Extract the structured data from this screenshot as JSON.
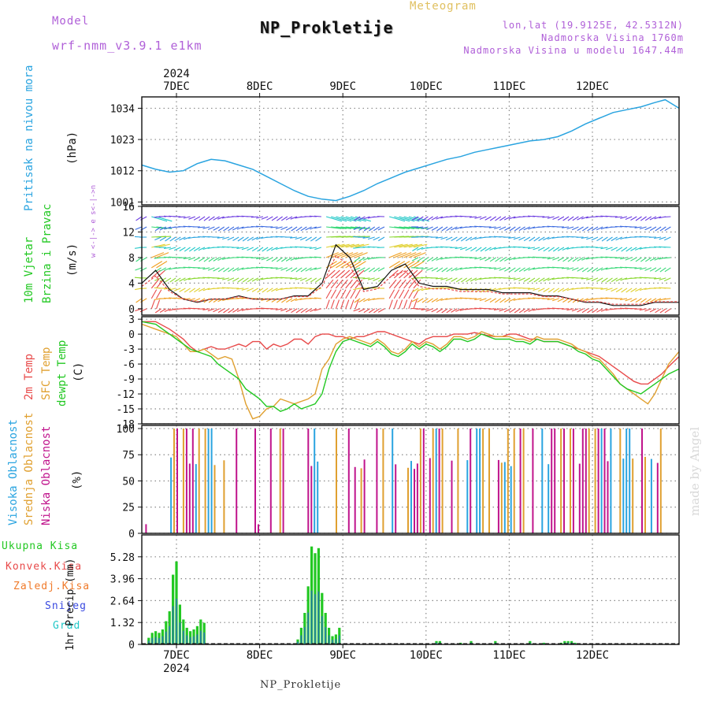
{
  "header": {
    "model_label": "Model",
    "model_name": "wrf-nmm_v3.9.1 e1km",
    "meteogram_label": "Meteogram",
    "station_title": "NP_Prokletije",
    "lonlat": "lon,lat (19.9125E, 42.5312N)",
    "elevation": "Nadmorska Visina 1760m",
    "model_elevation": "Nadmorska Visina u modelu 1647.44m",
    "year_top": "2024",
    "year_bottom": "2024",
    "footer_station": "NP_Prokletije",
    "credit": "made by Angel"
  },
  "colors": {
    "pressure": "#2aa4e0",
    "temp2m": "#e84a4a",
    "sfc_temp": "#e0a030",
    "dewpoint": "#22c822",
    "high_cloud": "#2aa4e0",
    "mid_cloud": "#e0a030",
    "low_cloud": "#c0148c",
    "total_precip": "#22c822",
    "convective": "#e84a4a",
    "freezing": "#f07a2a",
    "snow": "#3a4ae0",
    "hail": "#22c8c8",
    "header_purple": "#b060d8",
    "header_gold": "#e0c060",
    "grid": "#888888"
  },
  "x_axis": {
    "days": [
      "7DEC",
      "8DEC",
      "9DEC",
      "10DEC",
      "11DEC",
      "12DEC"
    ],
    "range_hours": [
      -10,
      145
    ]
  },
  "panels": {
    "pressure": {
      "label": "Pritisak na nivou mora",
      "unit": "(hPa)",
      "yticks": [
        "1001",
        "1012",
        "1023",
        "1034"
      ],
      "ylim": [
        1000,
        1038
      ]
    },
    "wind": {
      "label1": "10m Vjetar",
      "label2": "Brzina i Pravac",
      "unit": "(m/s)",
      "yticks": [
        "0",
        "4",
        "8",
        "12",
        "16"
      ],
      "ylim": [
        -1,
        16
      ],
      "compass": "w <-|-> e   s<-|->n"
    },
    "temperature": {
      "label_2m": "2m Temp",
      "label_sfc": "SFC Temp",
      "label_dew": "dewpt Temp",
      "unit": "(C)",
      "yticks": [
        "3",
        "0",
        "-3",
        "-6",
        "-9",
        "-12",
        "-15",
        "-18"
      ],
      "ylim": [
        -18,
        3.5
      ]
    },
    "clouds": {
      "label_high": "Visoka Oblacnost",
      "label_mid": "Srednja Oblacnost",
      "label_low": "Niska Oblacnost",
      "unit": "(%)",
      "yticks": [
        "0",
        "25",
        "50",
        "75",
        "100"
      ],
      "ylim": [
        0,
        103
      ]
    },
    "precip": {
      "legend": [
        "Ukupna Kisa",
        "Konvek.Kisa",
        "Zaledj.Kisa",
        "Snijeg",
        "Grad"
      ],
      "unit": "1hr Precip (mm)",
      "yticks": [
        "0",
        "1.32",
        "2.64",
        "3.96",
        "5.28"
      ],
      "ylim": [
        0,
        6.6
      ]
    }
  },
  "chart_data": {
    "type": "line",
    "x_unit": "hours from 00Z 7 DEC 2024",
    "pressure_hpa": {
      "x": [
        -10,
        -6,
        -2,
        2,
        6,
        10,
        14,
        18,
        22,
        26,
        30,
        34,
        38,
        42,
        46,
        50,
        54,
        58,
        62,
        66,
        70,
        74,
        78,
        82,
        86,
        90,
        94,
        98,
        102,
        106,
        110,
        114,
        118,
        122,
        126,
        130,
        134,
        138,
        141,
        145
      ],
      "y": [
        1014,
        1012.5,
        1011.5,
        1012,
        1014.5,
        1016,
        1015.5,
        1014,
        1012.5,
        1010,
        1007.5,
        1005,
        1003,
        1002,
        1001.5,
        1003,
        1005,
        1007.5,
        1009.5,
        1011.5,
        1013,
        1014.5,
        1016,
        1017,
        1018.5,
        1019.5,
        1020.5,
        1021.5,
        1022.5,
        1023,
        1024,
        1026,
        1028.5,
        1030.5,
        1032.5,
        1033.5,
        1034.5,
        1036,
        1037,
        1034
      ]
    },
    "temperature_c": {
      "x": [
        -10,
        -6,
        -2,
        0,
        2,
        4,
        6,
        8,
        10,
        12,
        14,
        16,
        18,
        20,
        22,
        24,
        26,
        28,
        30,
        32,
        34,
        36,
        38,
        40,
        42,
        44,
        46,
        48,
        50,
        52,
        54,
        56,
        58,
        60,
        62,
        64,
        66,
        68,
        70,
        72,
        74,
        76,
        78,
        80,
        82,
        84,
        86,
        88,
        90,
        92,
        94,
        96,
        98,
        100,
        102,
        104,
        106,
        108,
        110,
        112,
        114,
        116,
        118,
        120,
        122,
        124,
        126,
        128,
        130,
        132,
        134,
        136,
        138,
        140,
        142,
        145
      ],
      "t2m": [
        2.5,
        2.5,
        1,
        0,
        -1,
        -2.5,
        -3.5,
        -3,
        -2.5,
        -3,
        -3,
        -2.5,
        -2,
        -2.5,
        -1.5,
        -1.5,
        -3,
        -2,
        -2.5,
        -2,
        -1,
        -1,
        -2,
        -0.5,
        0,
        0,
        -0.5,
        -0.5,
        -1,
        -0.5,
        -0.5,
        0,
        0.5,
        0.5,
        0,
        -0.5,
        -1,
        -1.5,
        -2,
        -1,
        -0.5,
        -0.5,
        -0.5,
        0,
        0,
        0,
        0.3,
        0,
        -0.3,
        -0.5,
        -0.5,
        0,
        0,
        -0.5,
        -1,
        -1,
        -1.5,
        -1.5,
        -1.5,
        -2,
        -2.5,
        -3,
        -3.5,
        -4,
        -4.5,
        -5.5,
        -6.5,
        -7.5,
        -8.5,
        -9.5,
        -10,
        -10,
        -9,
        -8,
        -6.5,
        -4.5
      ],
      "tsfc": [
        2,
        1,
        0,
        -0.5,
        -2,
        -3.5,
        -3.5,
        -3,
        -4,
        -5,
        -4.5,
        -5,
        -9,
        -14,
        -17,
        -16.5,
        -15,
        -14.5,
        -13,
        -13.5,
        -14,
        -13.5,
        -13,
        -12,
        -7,
        -5,
        -2,
        -1,
        -0.5,
        -1,
        -1.5,
        -2,
        -1,
        -2,
        -3.5,
        -4,
        -3,
        -1.5,
        -2.5,
        -1.5,
        -2,
        -3,
        -2,
        -0.5,
        -0.5,
        -1,
        -0.5,
        0.5,
        0,
        -0.5,
        -0.5,
        -0.5,
        -1,
        -1,
        -1.5,
        -0.5,
        -1,
        -1,
        -1,
        -1.5,
        -2,
        -3,
        -3.5,
        -4.5,
        -5,
        -6.5,
        -8,
        -10,
        -11,
        -12,
        -13,
        -14,
        -12,
        -9,
        -6,
        -3.5
      ],
      "tdew": [
        2.5,
        2,
        0,
        -1,
        -2,
        -3,
        -3.5,
        -4,
        -4.5,
        -6,
        -7,
        -8,
        -9,
        -11,
        -12,
        -13,
        -14.5,
        -14.5,
        -15.5,
        -15,
        -14,
        -15,
        -14.5,
        -14,
        -12,
        -7,
        -3.5,
        -1.5,
        -1,
        -1.5,
        -2,
        -2.5,
        -1.5,
        -2.5,
        -4,
        -4.5,
        -3.5,
        -2,
        -3,
        -2,
        -2.5,
        -3.5,
        -2.5,
        -1,
        -1,
        -1.5,
        -1,
        0,
        -0.5,
        -1,
        -1,
        -1,
        -1.5,
        -1.5,
        -2,
        -1,
        -1.5,
        -1.5,
        -1.5,
        -2,
        -2.5,
        -3.5,
        -4,
        -5,
        -5.5,
        -7,
        -8.5,
        -10,
        -11,
        -11.5,
        -12,
        -11,
        -10,
        -9,
        -8,
        -7
      ]
    },
    "wind_speed_ms": {
      "x": [
        -10,
        -6,
        -2,
        2,
        6,
        10,
        14,
        18,
        22,
        26,
        30,
        34,
        38,
        42,
        46,
        50,
        54,
        58,
        62,
        66,
        70,
        74,
        78,
        82,
        86,
        90,
        94,
        98,
        102,
        106,
        110,
        114,
        118,
        122,
        126,
        130,
        134,
        138,
        142,
        145
      ],
      "y": [
        4,
        6,
        3,
        1.5,
        1,
        1.5,
        1.5,
        2,
        1.5,
        1.5,
        1.5,
        2,
        2,
        4,
        10,
        8,
        3,
        3.5,
        6,
        7,
        4,
        3.5,
        3.5,
        3,
        3,
        3,
        2.5,
        2.5,
        2.5,
        2,
        2,
        1.5,
        1,
        1,
        0.5,
        0.5,
        0.5,
        1,
        1,
        1
      ]
    }
  }
}
